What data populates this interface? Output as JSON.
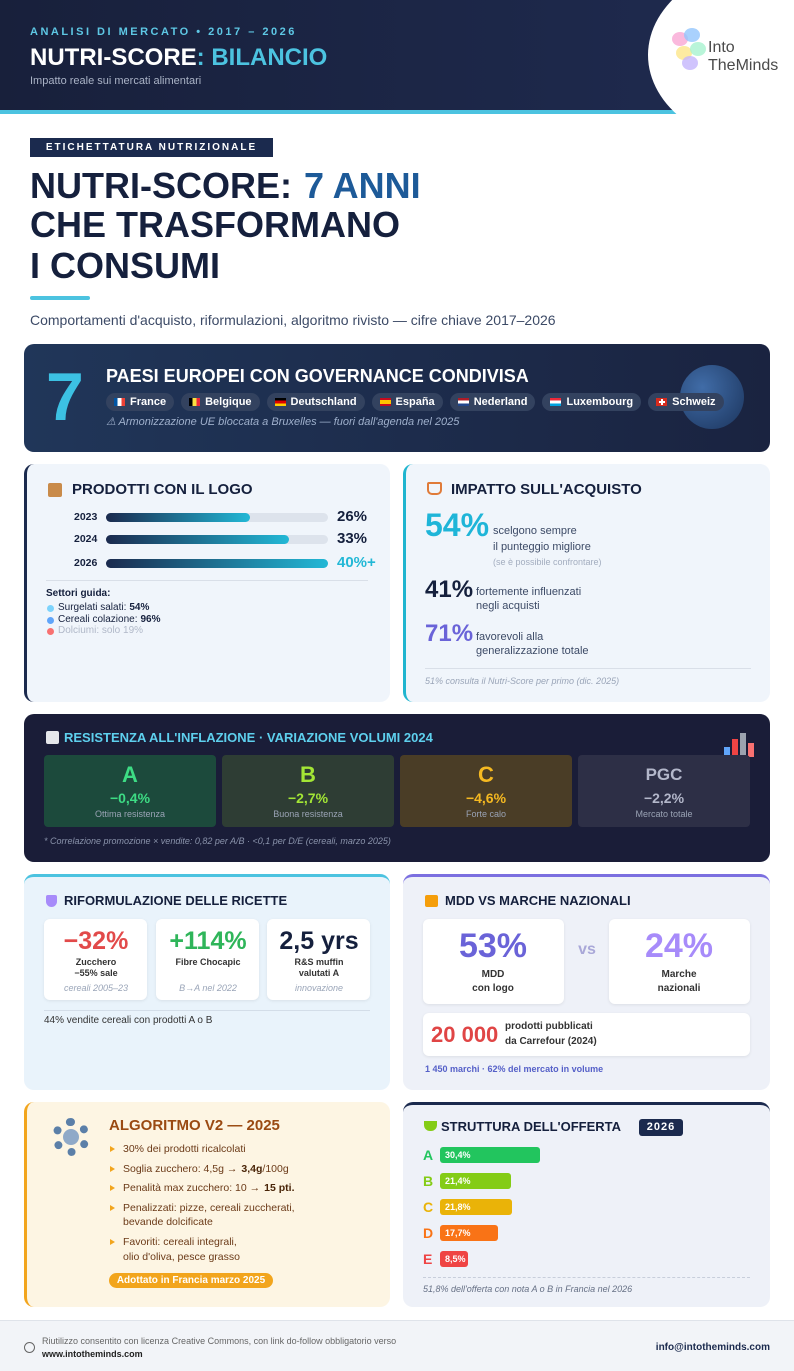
{
  "header": {
    "kicker": "ANALISI DI MERCATO • 2017 – 2026",
    "title": "NUTRI-SCORE",
    "title_accent": ": BILANCIO",
    "subtitle": "Impatto reale sui mercati alimentari",
    "logo": [
      "Into",
      "TheMinds"
    ]
  },
  "hero": {
    "tag": "ETICHETTATURA NUTRIZIONALE",
    "title": [
      "NUTRI-SCORE:",
      "7 ANNI",
      "CHE TRASFORMANO",
      "I CONSUMI"
    ],
    "subtitle": "Comportamenti d'acquisto, riformulazioni, algoritmo rivisto — cifre chiave 2017–2026"
  },
  "banner": {
    "number": 7,
    "title": "PAESI EUROPEI CON GOVERNANCE CONDIVISA",
    "countries": [
      "France",
      "Belgique",
      "Deutschland",
      "España",
      "Nederland",
      "Luxembourg",
      "Schweiz"
    ],
    "note": "⚠ Armonizzazione UE bloccata a Bruxelles — fuori dall'agenda nel 2025"
  },
  "products_logo": {
    "title": "PRODOTTI CON IL LOGO",
    "xlim": [
      0,
      40
    ],
    "bars": [
      {
        "year": "2023",
        "value": 26,
        "label": "26%",
        "color": "#15203d"
      },
      {
        "year": "2024",
        "value": 33,
        "label": "33%",
        "color": "#15203d"
      },
      {
        "year": "2026",
        "value": 40,
        "label": "40%+",
        "color": "#22b8d6"
      }
    ],
    "sectors_title": "Settori guida:",
    "sectors": [
      {
        "name": "Surgelati salati:",
        "value": "54%"
      },
      {
        "name": "Cereali colazione:",
        "value": "96%"
      },
      {
        "name": "Dolciumi: solo 19%"
      }
    ]
  },
  "purchase_impact": {
    "title": "IMPATTO SULL'ACQUISTO",
    "stats": [
      {
        "value": "54%",
        "color": "#1fb5d8",
        "lines": [
          "scelgono sempre",
          "il punteggio migliore"
        ],
        "note": "(se è possibile confrontare)"
      },
      {
        "value": "41%",
        "color": "#15203d",
        "lines": [
          "fortemente influenzati",
          "negli acquisti"
        ]
      },
      {
        "value": "71%",
        "color": "#6a63d8",
        "lines": [
          "favorevoli alla",
          "generalizzazione totale"
        ]
      }
    ],
    "footnote": "51% consulta il Nutri-Score per primo (dic. 2025)"
  },
  "inflation": {
    "title": "RESISTENZA ALL'INFLAZIONE · VARIAZIONE VOLUMI 2024",
    "items": [
      {
        "grade": "A",
        "value": "−0,4%",
        "label": "Ottima resistenza",
        "color": "#3ddc84",
        "background": "#1c4a3c"
      },
      {
        "grade": "B",
        "value": "−2,7%",
        "label": "Buona resistenza",
        "color": "#a3e635",
        "background": "#2e3d34"
      },
      {
        "grade": "C",
        "value": "−4,6%",
        "label": "Forte calo",
        "color": "#f5b921",
        "background": "#4a3d26"
      },
      {
        "grade": "PGC",
        "value": "−2,2%",
        "label": "Mercato totale",
        "color": "#b3b7ca",
        "background": "#2d2f46"
      }
    ],
    "footnote": "* Correlazione promozione × vendite: 0,82 per A/B · <0,1 per D/E (cereali, marzo 2025)"
  },
  "reformulation": {
    "title": "RIFORMULAZIONE DELLE RICETTE",
    "stats": [
      {
        "value": "−32%",
        "color": "#e24a4a",
        "lines": [
          "Zucchero",
          "−55% sale"
        ],
        "note": "cereali 2005–23"
      },
      {
        "value": "+114%",
        "color": "#2fb55a",
        "lines": [
          "Fibre Chocapic"
        ],
        "note": "B→A nel 2022"
      },
      {
        "value": "2,5 yrs",
        "color": "#15203d",
        "lines": [
          "R&S muffin",
          "valutati A"
        ],
        "note": "innovazione"
      }
    ],
    "footnote": "44% vendite cereali con prodotti A o B"
  },
  "mdd": {
    "title": "MDD VS MARCHE NAZIONALI",
    "left": {
      "value": "53%",
      "color": "#6a63d8",
      "lines": [
        "MDD",
        "con logo"
      ]
    },
    "vs": "vs",
    "right": {
      "value": "24%",
      "color": "#a78bfa",
      "lines": [
        "Marche",
        "nazionali"
      ]
    },
    "highlight": {
      "value": "20 000",
      "lines": [
        "prodotti pubblicati",
        "da Carrefour (2024)"
      ]
    },
    "footnote": "1 450 marchi · 62% del mercato in volume"
  },
  "algorithm": {
    "title": "ALGORITMO V2 — 2025",
    "items": [
      {
        "text": "30% dei prodotti ricalcolati"
      },
      {
        "text": "Soglia zucchero: 4,5g →",
        "strong": "3,4g",
        "after": "/100g"
      },
      {
        "text": "Penalità max zucchero: 10 →",
        "strong": "15 pti."
      },
      {
        "lines": [
          "Penalizzati: pizze, cereali zuccherati,",
          "bevande dolcificate"
        ]
      },
      {
        "lines": [
          "Favoriti: cereali integrali,",
          "olio d'oliva, pesce grasso"
        ]
      }
    ],
    "badge": "Adottato in Francia marzo 2025"
  },
  "offer": {
    "title": "STRUTTURA DELL'OFFERTA",
    "year": "2026",
    "xlim": [
      0,
      100
    ],
    "grades": [
      "A",
      "B",
      "C",
      "D",
      "E"
    ],
    "values": [
      30.4,
      21.4,
      21.8,
      17.7,
      8.5
    ],
    "value_labels": [
      "30,4%",
      "21,4%",
      "21,8%",
      "17,7%",
      "8,5%"
    ],
    "colors": [
      "#22c55e",
      "#84cc16",
      "#eab308",
      "#f97316",
      "#ef4444"
    ],
    "footnote": "51,8% dell'offerta con nota A o B in Francia nel 2026"
  },
  "footer": {
    "text": "Riutilizzo consentito con licenza Creative Commons, con link do-follow obbligatorio verso",
    "url": "www.intotheminds.com",
    "email": "info@intotheminds.com"
  }
}
